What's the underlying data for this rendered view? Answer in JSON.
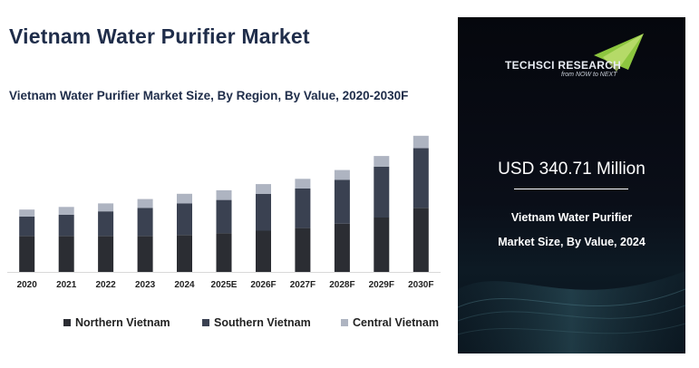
{
  "header": {
    "title": "Vietnam Water Purifier Market"
  },
  "chart_data": {
    "type": "bar",
    "stacked": true,
    "title": "Vietnam Water Purifier Market Size, By Region, By Value, 2020-2030F",
    "categories": [
      "2020",
      "2021",
      "2022",
      "2023",
      "2024",
      "2025E",
      "2026F",
      "2027F",
      "2028F",
      "2029F",
      "2030F"
    ],
    "series": [
      {
        "name": "Northern Vietnam",
        "color": "#2b2d33",
        "values": [
          41,
          41,
          41,
          41,
          42,
          44,
          47,
          50,
          55,
          62,
          73
        ]
      },
      {
        "name": "Southern Vietnam",
        "color": "#3a4151",
        "values": [
          22,
          24,
          28,
          32,
          36,
          38,
          42,
          45,
          50,
          58,
          68
        ]
      },
      {
        "name": "Central Vietnam",
        "color": "#aeb4c1",
        "values": [
          8,
          9,
          9,
          10,
          11,
          11,
          11,
          11,
          11,
          12,
          14
        ]
      }
    ],
    "ylim": [
      0,
      160
    ],
    "grid": false,
    "legend_position": "bottom"
  },
  "side_panel": {
    "logo_text": "TECHSCI RESEARCH",
    "logo_tagline": "from NOW to NEXT",
    "kpi_value": "USD 340.71 Million",
    "kpi_caption_line1": "Vietnam Water Purifier",
    "kpi_caption_line2": "Market Size, By Value, 2024"
  }
}
